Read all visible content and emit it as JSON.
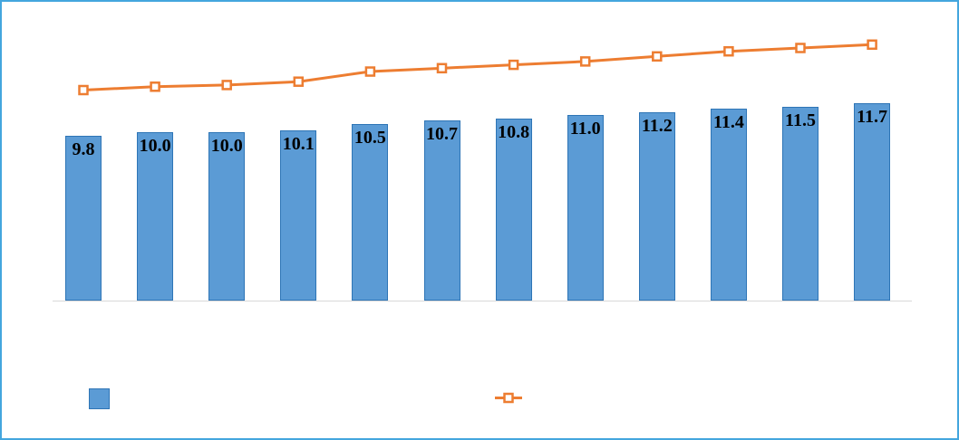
{
  "frame": {
    "border_color": "#44A6DE",
    "background": "#FFFFFF"
  },
  "chart_data": {
    "type": "bar",
    "combo_with_line": true,
    "title": "",
    "xlabel": "",
    "ylabel": "",
    "categories": [
      "",
      "",
      "",
      "",
      "",
      "",
      "",
      "",
      "",
      "",
      "",
      ""
    ],
    "ylim": [
      0,
      17.5
    ],
    "grid": false,
    "series": [
      {
        "name": "bar-series",
        "type": "bar",
        "color": "#5B9BD5",
        "border_color": "#2E75B6",
        "values": [
          9.8,
          10.0,
          10.0,
          10.1,
          10.5,
          10.7,
          10.8,
          11.0,
          11.2,
          11.4,
          11.5,
          11.7
        ],
        "data_labels": [
          "9.8",
          "10.0",
          "10.0",
          "10.1",
          "10.5",
          "10.7",
          "10.8",
          "11.0",
          "11.2",
          "11.4",
          "11.5",
          "11.7"
        ]
      },
      {
        "name": "line-series",
        "type": "line",
        "color": "#ED7D31",
        "marker": "square",
        "marker_fill": "#FFFFFF",
        "values_estimated": [
          12.5,
          12.7,
          12.8,
          13.0,
          13.6,
          13.8,
          14.0,
          14.2,
          14.5,
          14.8,
          15.0,
          15.2
        ]
      }
    ],
    "legend": {
      "position": "bottom",
      "items": [
        {
          "swatch": "blue-square",
          "label": ""
        },
        {
          "swatch": "orange-line-square-marker",
          "label": ""
        }
      ]
    }
  }
}
